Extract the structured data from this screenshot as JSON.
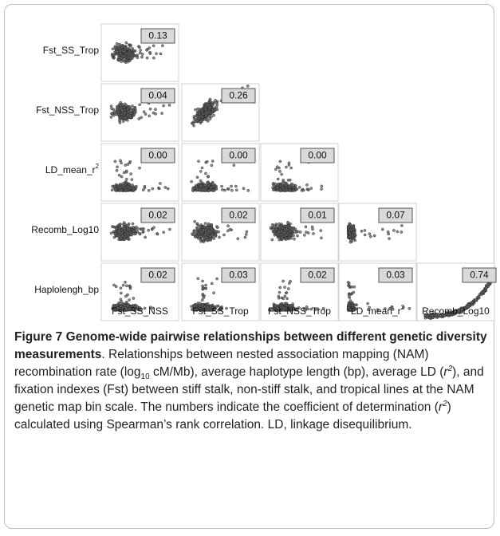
{
  "matrix": {
    "rows": [
      {
        "label": "Fst_SS_Trop",
        "values": [
          "0.13"
        ]
      },
      {
        "label": "Fst_NSS_Trop",
        "values": [
          "0.04",
          "0.26"
        ]
      },
      {
        "label": {
          "text": "LD_mean_r",
          "sup": "2"
        },
        "values": [
          "0.00",
          "0.00",
          "0.00"
        ]
      },
      {
        "label": "Recomb_Log10",
        "values": [
          "0.02",
          "0.02",
          "0.01",
          "0.07"
        ]
      },
      {
        "label": "Haplolengh_bp",
        "values": [
          "0.02",
          "0.03",
          "0.02",
          "0.03",
          "0.74"
        ]
      }
    ],
    "columns": [
      "Fst_SS_NSS",
      "Fst_SS_Trop",
      "Fst_NSS_Trop",
      {
        "text": "LD_mean_r",
        "sup": "2"
      },
      "Recomb_Log10"
    ]
  },
  "caption": {
    "segments": [
      {
        "text": "Figure 7 Genome-wide pairwise relationships between different genetic diversity measurements",
        "style": "bold"
      },
      {
        "text": ". Relationships between nested association mapping (NAM) recombination rate (log",
        "style": "normal"
      },
      {
        "text": "10",
        "style": "sub"
      },
      {
        "text": " cM/Mb), average haplotype length (bp), average LD (",
        "style": "normal"
      },
      {
        "text": "r",
        "style": "italic"
      },
      {
        "text": "2",
        "style": "sup"
      },
      {
        "text": "), and fixation indexes (Fst) between stiff stalk, non-stiff stalk, and tropical lines at the NAM genetic map bin scale. The numbers indicate the coefficient of determination (",
        "style": "normal"
      },
      {
        "text": "r",
        "style": "italic"
      },
      {
        "text": "2",
        "style": "sup"
      },
      {
        "text": ") calculated using Spearman’s rank correlation. LD, linkage disequilibrium.",
        "style": "normal"
      }
    ]
  }
}
